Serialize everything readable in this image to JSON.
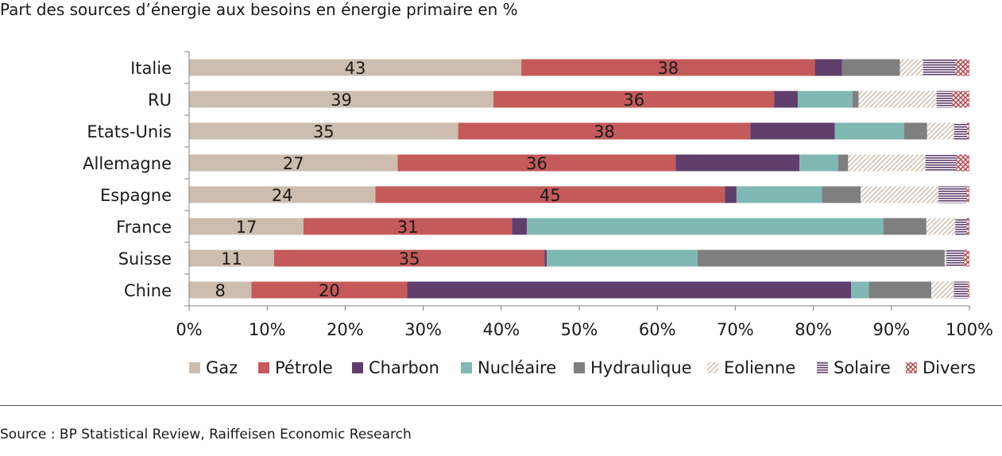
{
  "title": "Part des sources d’énergie aux besoins en énergie primaire en %",
  "source": "Source : BP Statistical Review, Raiffeisen Economic Research",
  "chart_data": {
    "type": "bar",
    "orientation": "horizontal",
    "stacked": "percent",
    "categories": [
      "Italie",
      "RU",
      "Etats-Unis",
      "Allemagne",
      "Espagne",
      "France",
      "Suisse",
      "Chine"
    ],
    "series": [
      {
        "name": "Gaz",
        "color": "#cdbdae",
        "pattern": "solid",
        "values": [
          43,
          39,
          35,
          27,
          24,
          17,
          11,
          8
        ],
        "labels": [
          "43",
          "39",
          "35",
          "27",
          "24",
          "17",
          "11",
          "8"
        ]
      },
      {
        "name": "Pétrole",
        "color": "#c55a5a",
        "pattern": "solid",
        "values": [
          38,
          36,
          38,
          36,
          45,
          31,
          35,
          20
        ],
        "labels": [
          "38",
          "36",
          "38",
          "36",
          "45",
          "31",
          "35",
          "20"
        ]
      },
      {
        "name": "Charbon",
        "color": "#5f3e6c",
        "pattern": "solid",
        "values": [
          3.5,
          3,
          11,
          16,
          1.5,
          2.2,
          0.3,
          57
        ],
        "labels": []
      },
      {
        "name": "Nucléaire",
        "color": "#80b8b3",
        "pattern": "solid",
        "values": [
          0,
          7,
          9,
          5,
          11,
          53,
          19.5,
          2.3
        ],
        "labels": []
      },
      {
        "name": "Hydraulique",
        "color": "#7f7f7f",
        "pattern": "solid",
        "values": [
          7.5,
          0.8,
          3,
          1.3,
          5,
          6.4,
          32,
          8
        ],
        "labels": []
      },
      {
        "name": "Eolienne",
        "color": "#d2c3b4",
        "pattern": "diagonal",
        "values": [
          3,
          10,
          3.5,
          10,
          10,
          4.3,
          0.2,
          2.9
        ],
        "labels": []
      },
      {
        "name": "Solaire",
        "color": "#5f3e6c",
        "pattern": "horizontal",
        "values": [
          4.2,
          2,
          1.7,
          4,
          3.6,
          1.7,
          2.3,
          1.8
        ],
        "labels": []
      },
      {
        "name": "Divers",
        "color": "#b0454a",
        "pattern": "diagonal-cross",
        "values": [
          1.8,
          2.2,
          0.3,
          1.7,
          0.4,
          0.4,
          0.7,
          0.2
        ],
        "labels": []
      }
    ],
    "xlim": [
      0,
      100
    ],
    "xticks": [
      "0%",
      "10%",
      "20%",
      "30%",
      "40%",
      "50%",
      "60%",
      "70%",
      "80%",
      "90%",
      "100%"
    ],
    "legend_position": "bottom",
    "grid": false
  }
}
